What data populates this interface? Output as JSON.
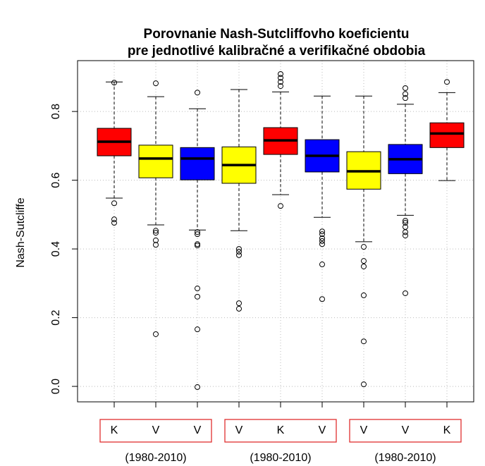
{
  "chart_data": {
    "type": "boxplot",
    "title": [
      "Porovnanie Nash-Sutcliffovho koeficientu",
      "pre jednotlivé kalibračné a verifikačné obdobia"
    ],
    "ylabel": "Nash-Sutcliffe",
    "categories": [
      "K",
      "V",
      "V",
      "V",
      "K",
      "V",
      "V",
      "V",
      "K"
    ],
    "groups": [
      "(1980-2010)",
      "(1980-2010)",
      "(1980-2010)"
    ],
    "ylim": [
      -0.045,
      0.948
    ],
    "yticks": [
      {
        "value": 0,
        "label": "0.0"
      },
      0.2,
      0.4,
      0.6,
      0.8
    ],
    "grid": true,
    "boxes": [
      {
        "color": "#ff0000",
        "whisker_low": 0.548,
        "q1": 0.671,
        "median": 0.712,
        "q3": 0.751,
        "whisker_high": 0.886,
        "outliers": [
          0.884,
          0.533,
          0.486,
          0.476
        ]
      },
      {
        "color": "#ffff00",
        "whisker_low": 0.47,
        "q1": 0.607,
        "median": 0.663,
        "q3": 0.702,
        "whisker_high": 0.843,
        "outliers": [
          0.882,
          0.453,
          0.447,
          0.425,
          0.412,
          0.152
        ]
      },
      {
        "color": "#0000ff",
        "whisker_low": 0.455,
        "q1": 0.601,
        "median": 0.663,
        "q3": 0.695,
        "whisker_high": 0.808,
        "outliers": [
          0.855,
          0.449,
          0.443,
          0.414,
          0.41,
          0.285,
          0.261,
          0.166,
          -0.002
        ]
      },
      {
        "color": "#ffff00",
        "whisker_low": 0.453,
        "q1": 0.591,
        "median": 0.644,
        "q3": 0.697,
        "whisker_high": 0.864,
        "outliers": [
          0.4,
          0.392,
          0.382,
          0.242,
          0.226
        ]
      },
      {
        "color": "#ff0000",
        "whisker_low": 0.558,
        "q1": 0.675,
        "median": 0.716,
        "q3": 0.753,
        "whisker_high": 0.857,
        "outliers": [
          0.909,
          0.898,
          0.886,
          0.874,
          0.525
        ]
      },
      {
        "color": "#0000ff",
        "whisker_low": 0.492,
        "q1": 0.624,
        "median": 0.671,
        "q3": 0.718,
        "whisker_high": 0.845,
        "outliers": [
          0.451,
          0.443,
          0.431,
          0.423,
          0.414,
          0.355,
          0.254
        ]
      },
      {
        "color": "#ffff00",
        "whisker_low": 0.421,
        "q1": 0.574,
        "median": 0.626,
        "q3": 0.683,
        "whisker_high": 0.845,
        "outliers": [
          0.406,
          0.365,
          0.349,
          0.265,
          0.131,
          0.006
        ]
      },
      {
        "color": "#0000ff",
        "whisker_low": 0.498,
        "q1": 0.619,
        "median": 0.661,
        "q3": 0.704,
        "whisker_high": 0.821,
        "outliers": [
          0.868,
          0.851,
          0.839,
          0.482,
          0.476,
          0.464,
          0.449,
          0.439,
          0.271
        ]
      },
      {
        "color": "#ff0000",
        "whisker_low": 0.599,
        "q1": 0.695,
        "median": 0.736,
        "q3": 0.767,
        "whisker_high": 0.855,
        "outliers": [
          0.886
        ]
      }
    ]
  }
}
